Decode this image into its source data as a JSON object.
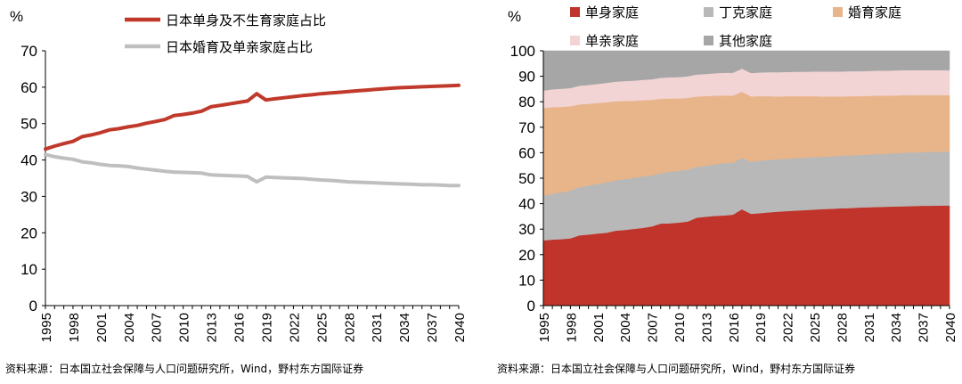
{
  "chart_data": [
    {
      "type": "line",
      "unit_label": "%",
      "title": "",
      "xlabel": "",
      "ylabel": "%",
      "ylim": [
        0,
        70
      ],
      "yticks": [
        0,
        10,
        20,
        30,
        40,
        50,
        60,
        70
      ],
      "x_start": 1995,
      "x_end": 2040,
      "xticks": [
        1995,
        1998,
        2001,
        2004,
        2007,
        2010,
        2013,
        2016,
        2019,
        2022,
        2025,
        2028,
        2031,
        2034,
        2037,
        2040
      ],
      "grid": false,
      "legend_position": "top",
      "series": [
        {
          "name": "日本单身及不生育家庭占比",
          "color": "#c0392b",
          "values": [
            43.0,
            43.8,
            44.5,
            45.1,
            46.4,
            46.9,
            47.5,
            48.3,
            48.6,
            49.1,
            49.5,
            50.1,
            50.6,
            51.1,
            52.2,
            52.5,
            52.9,
            53.4,
            54.6,
            55.0,
            55.4,
            55.8,
            56.2,
            58.2,
            56.5,
            56.8,
            57.1,
            57.4,
            57.7,
            57.9,
            58.2,
            58.4,
            58.6,
            58.8,
            59.0,
            59.2,
            59.4,
            59.6,
            59.8,
            59.9,
            60.0,
            60.1,
            60.2,
            60.3,
            60.4,
            60.5
          ]
        },
        {
          "name": "日本婚育及单亲家庭占比",
          "color": "#bfbfbf",
          "values": [
            41.5,
            40.9,
            40.5,
            40.2,
            39.5,
            39.2,
            38.8,
            38.5,
            38.4,
            38.2,
            37.8,
            37.5,
            37.2,
            36.9,
            36.7,
            36.6,
            36.5,
            36.4,
            35.9,
            35.8,
            35.7,
            35.6,
            35.5,
            34.0,
            35.3,
            35.2,
            35.1,
            35.0,
            34.9,
            34.7,
            34.5,
            34.4,
            34.2,
            34.0,
            33.9,
            33.8,
            33.7,
            33.6,
            33.5,
            33.4,
            33.3,
            33.2,
            33.2,
            33.1,
            33.0,
            33.0
          ]
        }
      ]
    },
    {
      "type": "area",
      "stacked": true,
      "unit_label": "%",
      "title": "",
      "xlabel": "",
      "ylabel": "%",
      "ylim": [
        0,
        100
      ],
      "yticks": [
        0,
        10,
        20,
        30,
        40,
        50,
        60,
        70,
        80,
        90,
        100
      ],
      "x_start": 1995,
      "x_end": 2040,
      "xticks": [
        1995,
        1998,
        2001,
        2004,
        2007,
        2010,
        2013,
        2016,
        2019,
        2022,
        2025,
        2028,
        2031,
        2034,
        2037,
        2040
      ],
      "grid": false,
      "legend_position": "top",
      "series": [
        {
          "name": "单身家庭",
          "color": "#c0342b",
          "values": [
            25.6,
            25.9,
            26.1,
            26.4,
            27.6,
            27.9,
            28.3,
            28.6,
            29.4,
            29.7,
            30.1,
            30.5,
            31.1,
            32.2,
            32.3,
            32.6,
            33.0,
            34.5,
            34.9,
            35.2,
            35.4,
            35.7,
            37.8,
            36.0,
            36.3,
            36.6,
            36.9,
            37.1,
            37.3,
            37.5,
            37.7,
            37.9,
            38.0,
            38.2,
            38.3,
            38.5,
            38.6,
            38.7,
            38.8,
            38.9,
            39.0,
            39.1,
            39.2,
            39.2,
            39.3,
            39.3
          ]
        },
        {
          "name": "丁克家庭",
          "color": "#b8b8b8",
          "values": [
            17.5,
            18.0,
            18.4,
            18.7,
            18.9,
            19.2,
            19.4,
            19.8,
            19.8,
            20.0,
            20.0,
            20.2,
            20.0,
            19.8,
            20.2,
            20.3,
            20.4,
            19.9,
            20.0,
            20.3,
            20.5,
            20.4,
            20.2,
            20.5,
            20.6,
            20.6,
            20.5,
            20.6,
            20.6,
            20.6,
            20.6,
            20.5,
            20.6,
            20.6,
            20.7,
            20.6,
            20.7,
            20.8,
            20.8,
            20.9,
            21.0,
            21.0,
            21.0,
            21.1,
            21.1,
            21.2
          ]
        },
        {
          "name": "婚育家庭",
          "color": "#e8b48a",
          "values": [
            34.4,
            34.0,
            33.5,
            33.1,
            32.5,
            32.1,
            31.8,
            31.4,
            31.0,
            30.6,
            30.3,
            29.9,
            29.6,
            29.2,
            28.8,
            28.4,
            28.1,
            27.7,
            27.3,
            26.9,
            26.6,
            26.3,
            25.9,
            25.6,
            25.3,
            25.0,
            24.7,
            24.5,
            24.3,
            24.1,
            23.9,
            23.7,
            23.5,
            23.3,
            23.2,
            23.1,
            23.0,
            22.9,
            22.8,
            22.7,
            22.6,
            22.5,
            22.4,
            22.3,
            22.2,
            22.1
          ]
        },
        {
          "name": "单亲家庭",
          "color": "#f2d4d4",
          "values": [
            6.9,
            7.0,
            7.1,
            7.2,
            7.3,
            7.4,
            7.5,
            7.6,
            7.7,
            7.8,
            7.9,
            8.0,
            8.1,
            8.2,
            8.3,
            8.4,
            8.5,
            8.6,
            8.7,
            8.8,
            8.9,
            9.0,
            9.1,
            9.2,
            9.3,
            9.4,
            9.5,
            9.5,
            9.6,
            9.6,
            9.7,
            9.8,
            9.8,
            9.8,
            9.8,
            9.8,
            9.8,
            9.8,
            9.8,
            9.8,
            9.8,
            9.8,
            9.8,
            9.8,
            9.8,
            9.8
          ]
        },
        {
          "name": "其他家庭",
          "color": "#a6a6a6",
          "values": [
            15.6,
            15.1,
            14.9,
            14.6,
            13.7,
            13.4,
            13.0,
            12.6,
            12.1,
            11.9,
            11.7,
            11.4,
            11.2,
            10.6,
            10.4,
            10.3,
            10.0,
            9.3,
            9.1,
            8.8,
            8.6,
            8.6,
            7.0,
            8.7,
            8.5,
            8.4,
            8.4,
            8.3,
            8.2,
            8.2,
            8.1,
            8.1,
            8.1,
            8.1,
            8.0,
            8.0,
            7.9,
            7.8,
            7.8,
            7.7,
            7.6,
            7.6,
            7.6,
            7.6,
            7.6,
            7.6
          ]
        }
      ]
    }
  ],
  "sources": {
    "left": "资料来源：日本国立社会保障与人口问题研究所，Wind，野村东方国际证券",
    "right": "资料来源：日本国立社会保障与人口问题研究所，Wind，野村东方国际证券"
  }
}
